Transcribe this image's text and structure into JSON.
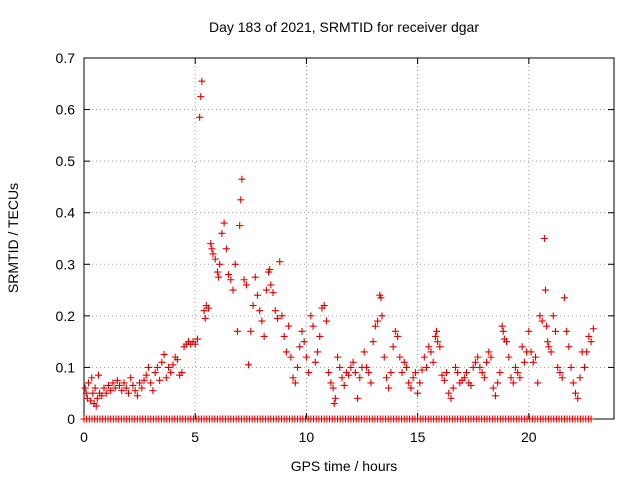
{
  "chart_data": {
    "type": "scatter",
    "title": "Day 183 of 2021, SRMTID for receiver dgar",
    "xlabel": "GPS time / hours",
    "ylabel": "SRMTID / TECUs",
    "xlim": [
      0,
      23.83
    ],
    "ylim": [
      0,
      0.7
    ],
    "xticks": [
      "0",
      "5",
      "10",
      "15",
      "20"
    ],
    "xtick_values": [
      0,
      5,
      10,
      15,
      20
    ],
    "yticks": [
      "0",
      "0.1",
      "0.2",
      "0.3",
      "0.4",
      "0.5",
      "0.6",
      "0.7"
    ],
    "ytick_values": [
      0,
      0.1,
      0.2,
      0.3,
      0.4,
      0.5,
      0.6,
      0.7
    ],
    "grid": true,
    "marker": "+",
    "color": "#dd0000",
    "series": [
      {
        "name": "SRMTID",
        "points": [
          [
            0.05,
            0.06
          ],
          [
            0.1,
            0.05
          ],
          [
            0.15,
            0.04
          ],
          [
            0.2,
            0.07
          ],
          [
            0.3,
            0.035
          ],
          [
            0.35,
            0.08
          ],
          [
            0.4,
            0.05
          ],
          [
            0.45,
            0.03
          ],
          [
            0.5,
            0.06
          ],
          [
            0.55,
            0.025
          ],
          [
            0.6,
            0.04
          ],
          [
            0.65,
            0.085
          ],
          [
            0.7,
            0.05
          ],
          [
            0.8,
            0.045
          ],
          [
            0.9,
            0.06
          ],
          [
            1.0,
            0.05
          ],
          [
            1.1,
            0.065
          ],
          [
            1.2,
            0.055
          ],
          [
            1.3,
            0.07
          ],
          [
            1.4,
            0.06
          ],
          [
            1.5,
            0.075
          ],
          [
            1.6,
            0.065
          ],
          [
            1.7,
            0.055
          ],
          [
            1.8,
            0.07
          ],
          [
            1.9,
            0.06
          ],
          [
            2.0,
            0.05
          ],
          [
            2.1,
            0.08
          ],
          [
            2.2,
            0.065
          ],
          [
            2.3,
            0.055
          ],
          [
            2.4,
            0.045
          ],
          [
            2.5,
            0.07
          ],
          [
            2.6,
            0.06
          ],
          [
            2.7,
            0.075
          ],
          [
            2.8,
            0.085
          ],
          [
            2.9,
            0.1
          ],
          [
            3.0,
            0.07
          ],
          [
            3.1,
            0.055
          ],
          [
            3.2,
            0.09
          ],
          [
            3.3,
            0.1
          ],
          [
            3.4,
            0.075
          ],
          [
            3.5,
            0.11
          ],
          [
            3.6,
            0.125
          ],
          [
            3.7,
            0.08
          ],
          [
            3.8,
            0.1
          ],
          [
            3.9,
            0.09
          ],
          [
            4.0,
            0.105
          ],
          [
            4.1,
            0.12
          ],
          [
            4.2,
            0.115
          ],
          [
            4.3,
            0.085
          ],
          [
            4.4,
            0.09
          ],
          [
            4.5,
            0.14
          ],
          [
            4.6,
            0.145
          ],
          [
            4.7,
            0.15
          ],
          [
            4.8,
            0.145
          ],
          [
            4.9,
            0.15
          ],
          [
            5.0,
            0.145
          ],
          [
            5.1,
            0.155
          ],
          [
            5.2,
            0.585
          ],
          [
            5.25,
            0.625
          ],
          [
            5.3,
            0.655
          ],
          [
            5.4,
            0.21
          ],
          [
            5.45,
            0.195
          ],
          [
            5.5,
            0.22
          ],
          [
            5.6,
            0.215
          ],
          [
            5.7,
            0.34
          ],
          [
            5.75,
            0.33
          ],
          [
            5.8,
            0.32
          ],
          [
            5.9,
            0.31
          ],
          [
            6.0,
            0.285
          ],
          [
            6.05,
            0.275
          ],
          [
            6.1,
            0.3
          ],
          [
            6.2,
            0.36
          ],
          [
            6.3,
            0.38
          ],
          [
            6.4,
            0.33
          ],
          [
            6.5,
            0.28
          ],
          [
            6.6,
            0.27
          ],
          [
            6.7,
            0.25
          ],
          [
            6.8,
            0.3
          ],
          [
            6.9,
            0.17
          ],
          [
            7.0,
            0.375
          ],
          [
            7.05,
            0.425
          ],
          [
            7.1,
            0.465
          ],
          [
            7.2,
            0.27
          ],
          [
            7.3,
            0.26
          ],
          [
            7.4,
            0.105
          ],
          [
            7.5,
            0.17
          ],
          [
            7.6,
            0.22
          ],
          [
            7.7,
            0.275
          ],
          [
            7.8,
            0.24
          ],
          [
            7.9,
            0.21
          ],
          [
            8.0,
            0.19
          ],
          [
            8.1,
            0.16
          ],
          [
            8.2,
            0.25
          ],
          [
            8.3,
            0.285
          ],
          [
            8.35,
            0.29
          ],
          [
            8.4,
            0.26
          ],
          [
            8.5,
            0.245
          ],
          [
            8.6,
            0.21
          ],
          [
            8.7,
            0.195
          ],
          [
            8.8,
            0.305
          ],
          [
            8.9,
            0.2
          ],
          [
            9.0,
            0.16
          ],
          [
            9.1,
            0.13
          ],
          [
            9.2,
            0.18
          ],
          [
            9.3,
            0.12
          ],
          [
            9.4,
            0.08
          ],
          [
            9.5,
            0.07
          ],
          [
            9.6,
            0.1
          ],
          [
            9.7,
            0.14
          ],
          [
            9.8,
            0.17
          ],
          [
            9.9,
            0.15
          ],
          [
            10.0,
            0.12
          ],
          [
            10.1,
            0.09
          ],
          [
            10.2,
            0.2
          ],
          [
            10.3,
            0.18
          ],
          [
            10.4,
            0.11
          ],
          [
            10.5,
            0.13
          ],
          [
            10.6,
            0.16
          ],
          [
            10.7,
            0.215
          ],
          [
            10.8,
            0.22
          ],
          [
            10.9,
            0.19
          ],
          [
            11.0,
            0.09
          ],
          [
            11.1,
            0.07
          ],
          [
            11.2,
            0.06
          ],
          [
            11.25,
            0.03
          ],
          [
            11.3,
            0.04
          ],
          [
            11.4,
            0.12
          ],
          [
            11.5,
            0.1
          ],
          [
            11.6,
            0.08
          ],
          [
            11.7,
            0.065
          ],
          [
            11.8,
            0.09
          ],
          [
            11.9,
            0.085
          ],
          [
            12.0,
            0.1
          ],
          [
            12.1,
            0.11
          ],
          [
            12.2,
            0.09
          ],
          [
            12.3,
            0.04
          ],
          [
            12.4,
            0.08
          ],
          [
            12.5,
            0.1
          ],
          [
            12.6,
            0.13
          ],
          [
            12.7,
            0.1
          ],
          [
            12.8,
            0.09
          ],
          [
            12.9,
            0.07
          ],
          [
            13.0,
            0.15
          ],
          [
            13.1,
            0.18
          ],
          [
            13.2,
            0.19
          ],
          [
            13.3,
            0.24
          ],
          [
            13.35,
            0.235
          ],
          [
            13.4,
            0.2
          ],
          [
            13.5,
            0.12
          ],
          [
            13.6,
            0.08
          ],
          [
            13.7,
            0.06
          ],
          [
            13.8,
            0.09
          ],
          [
            13.9,
            0.14
          ],
          [
            14.0,
            0.17
          ],
          [
            14.1,
            0.16
          ],
          [
            14.2,
            0.12
          ],
          [
            14.3,
            0.09
          ],
          [
            14.4,
            0.11
          ],
          [
            14.5,
            0.1
          ],
          [
            14.6,
            0.07
          ],
          [
            14.7,
            0.06
          ],
          [
            14.8,
            0.08
          ],
          [
            14.9,
            0.09
          ],
          [
            15.0,
            0.05
          ],
          [
            15.1,
            0.07
          ],
          [
            15.2,
            0.095
          ],
          [
            15.3,
            0.12
          ],
          [
            15.4,
            0.1
          ],
          [
            15.5,
            0.14
          ],
          [
            15.6,
            0.13
          ],
          [
            15.7,
            0.11
          ],
          [
            15.8,
            0.16
          ],
          [
            15.85,
            0.17
          ],
          [
            15.9,
            0.15
          ],
          [
            16.0,
            0.14
          ],
          [
            16.1,
            0.085
          ],
          [
            16.2,
            0.075
          ],
          [
            16.3,
            0.09
          ],
          [
            16.4,
            0.05
          ],
          [
            16.5,
            0.04
          ],
          [
            16.6,
            0.06
          ],
          [
            16.7,
            0.1
          ],
          [
            16.8,
            0.09
          ],
          [
            16.9,
            0.07
          ],
          [
            17.0,
            0.075
          ],
          [
            17.1,
            0.08
          ],
          [
            17.2,
            0.09
          ],
          [
            17.3,
            0.07
          ],
          [
            17.4,
            0.065
          ],
          [
            17.5,
            0.1
          ],
          [
            17.6,
            0.11
          ],
          [
            17.7,
            0.12
          ],
          [
            17.8,
            0.1
          ],
          [
            17.9,
            0.09
          ],
          [
            18.0,
            0.08
          ],
          [
            18.1,
            0.11
          ],
          [
            18.2,
            0.13
          ],
          [
            18.3,
            0.12
          ],
          [
            18.4,
            0.06
          ],
          [
            18.5,
            0.045
          ],
          [
            18.6,
            0.07
          ],
          [
            18.7,
            0.09
          ],
          [
            18.8,
            0.18
          ],
          [
            18.85,
            0.17
          ],
          [
            18.9,
            0.155
          ],
          [
            19.0,
            0.15
          ],
          [
            19.1,
            0.12
          ],
          [
            19.2,
            0.08
          ],
          [
            19.3,
            0.07
          ],
          [
            19.4,
            0.1
          ],
          [
            19.5,
            0.09
          ],
          [
            19.6,
            0.08
          ],
          [
            19.7,
            0.14
          ],
          [
            19.8,
            0.11
          ],
          [
            19.9,
            0.13
          ],
          [
            20.0,
            0.17
          ],
          [
            20.1,
            0.13
          ],
          [
            20.2,
            0.11
          ],
          [
            20.3,
            0.12
          ],
          [
            20.4,
            0.07
          ],
          [
            20.5,
            0.2
          ],
          [
            20.6,
            0.19
          ],
          [
            20.7,
            0.35
          ],
          [
            20.75,
            0.25
          ],
          [
            20.8,
            0.18
          ],
          [
            20.85,
            0.15
          ],
          [
            20.9,
            0.14
          ],
          [
            21.0,
            0.13
          ],
          [
            21.1,
            0.2
          ],
          [
            21.2,
            0.17
          ],
          [
            21.3,
            0.1
          ],
          [
            21.4,
            0.09
          ],
          [
            21.5,
            0.08
          ],
          [
            21.6,
            0.235
          ],
          [
            21.7,
            0.17
          ],
          [
            21.8,
            0.14
          ],
          [
            21.9,
            0.1
          ],
          [
            22.0,
            0.07
          ],
          [
            22.1,
            0.05
          ],
          [
            22.2,
            0.04
          ],
          [
            22.3,
            0.08
          ],
          [
            22.4,
            0.13
          ],
          [
            22.5,
            0.1
          ],
          [
            22.6,
            0.13
          ],
          [
            22.7,
            0.16
          ],
          [
            22.8,
            0.15
          ],
          [
            22.9,
            0.175
          ]
        ]
      }
    ],
    "zero_baseline": {
      "from": 0.0,
      "to": 22.85,
      "step": 0.12,
      "value": 0
    }
  }
}
